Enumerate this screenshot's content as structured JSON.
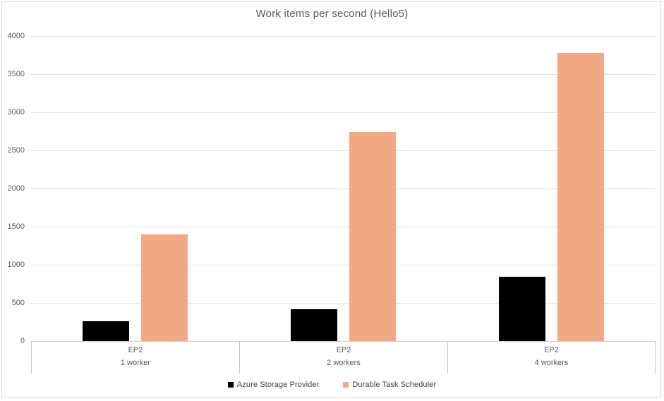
{
  "chart_data": {
    "type": "bar",
    "title": "Work items per second (Hello5)",
    "categories": [
      {
        "tier": "EP2",
        "workers": "1 worker"
      },
      {
        "tier": "EP2",
        "workers": "2 workers"
      },
      {
        "tier": "EP2",
        "workers": "4 workers"
      }
    ],
    "series": [
      {
        "name": "Azure Storage Provider",
        "color": "#000000",
        "values": [
          260,
          420,
          840
        ]
      },
      {
        "name": "Durable Task Scheduler",
        "color": "#F2A983",
        "values": [
          1395,
          2745,
          3775
        ]
      }
    ],
    "xlabel": "",
    "ylabel": "",
    "ylim": [
      0,
      4000
    ],
    "ytick_step": 500,
    "ytick_labels": [
      "0",
      "500",
      "1000",
      "1500",
      "2000",
      "2500",
      "3000",
      "3500",
      "4000"
    ],
    "grid": "horizontal-only",
    "legend_position": "bottom"
  },
  "colors": {
    "background": "#FFFFFF",
    "border": "#D9D9D9",
    "gridline": "#E0E0E0",
    "axis_line": "#C6C6C6",
    "axis_text": "#595959",
    "title_text": "#595959",
    "legend_text": "#404040"
  }
}
